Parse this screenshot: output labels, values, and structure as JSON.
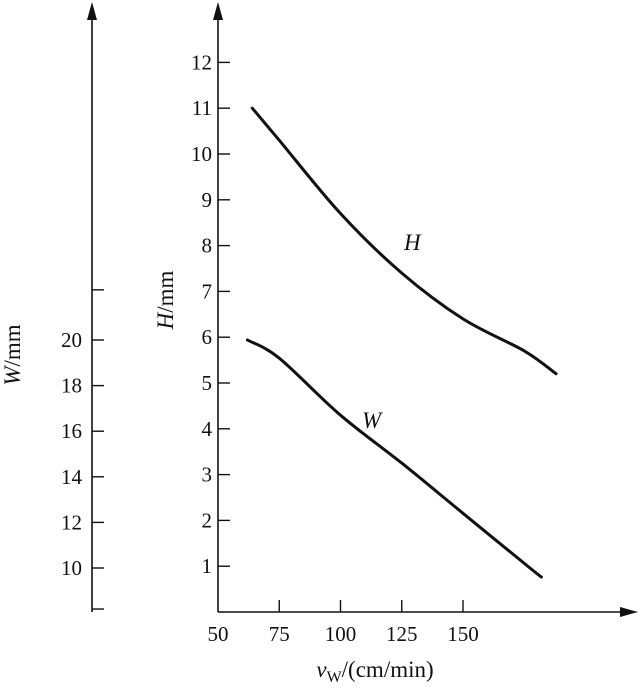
{
  "chart_data": {
    "type": "line",
    "x": {
      "label_main": "v",
      "label_sub": "W",
      "label_unit": "/(cm/min)",
      "ticks": [
        50,
        75,
        100,
        125,
        150
      ],
      "range": [
        50,
        215
      ]
    },
    "y_left": {
      "label_var": "W",
      "label_unit": "/mm",
      "ticks": [
        10,
        12,
        14,
        16,
        18,
        20
      ],
      "extra_tick_values": [
        8.2,
        22.2
      ],
      "range": [
        8.2,
        34
      ]
    },
    "y_right": {
      "label_var": "H",
      "label_unit": "/mm",
      "ticks": [
        1,
        2,
        3,
        4,
        5,
        6,
        7,
        8,
        9,
        10,
        11,
        12
      ],
      "range": [
        0,
        13.5
      ]
    },
    "series": [
      {
        "name": "H",
        "axis": "y_right",
        "x": [
          64,
          75,
          100,
          125,
          150,
          175,
          188
        ],
        "values": [
          11,
          10.3,
          8.7,
          7.4,
          6.4,
          5.7,
          5.2
        ]
      },
      {
        "name": "W",
        "axis": "y_left",
        "x": [
          62,
          75,
          100,
          125,
          150,
          175,
          182
        ],
        "values": [
          20,
          19.2,
          16.7,
          14.6,
          12.4,
          10.2,
          9.6
        ]
      }
    ],
    "grid": false
  }
}
